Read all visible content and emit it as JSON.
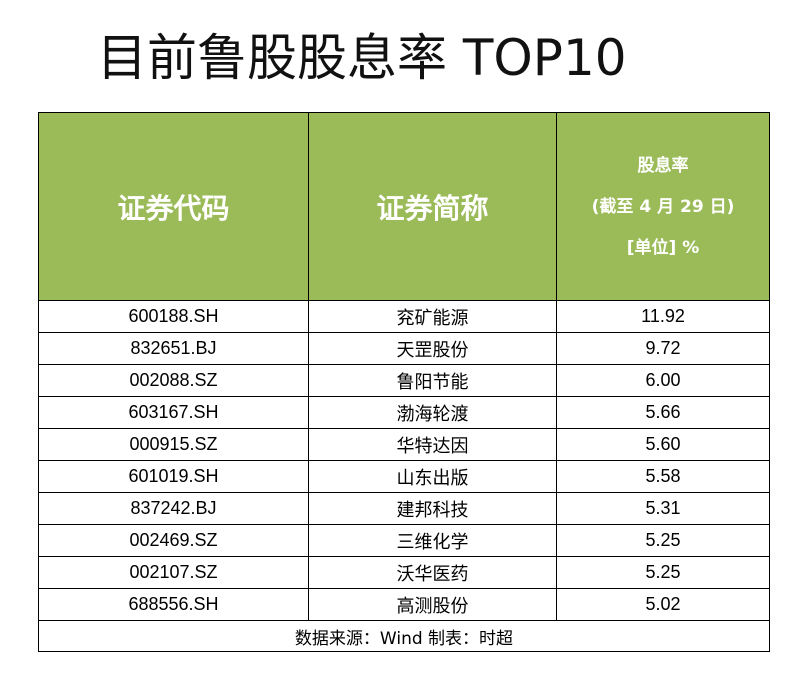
{
  "title": "目前鲁股股息率 TOP10",
  "table": {
    "headers": {
      "code": "证券代码",
      "name": "证券简称",
      "yield_line1": "股息率",
      "yield_line2": "(截至 4 月 29 日)",
      "yield_line3": "[单位] %"
    },
    "rows": [
      {
        "code": "600188.SH",
        "name": "兖矿能源",
        "yield": "11.92"
      },
      {
        "code": "832651.BJ",
        "name": "天罡股份",
        "yield": "9.72"
      },
      {
        "code": "002088.SZ",
        "name": "鲁阳节能",
        "yield": "6.00"
      },
      {
        "code": "603167.SH",
        "name": "渤海轮渡",
        "yield": "5.66"
      },
      {
        "code": "000915.SZ",
        "name": "华特达因",
        "yield": "5.60"
      },
      {
        "code": "601019.SH",
        "name": "山东出版",
        "yield": "5.58"
      },
      {
        "code": "837242.BJ",
        "name": "建邦科技",
        "yield": "5.31"
      },
      {
        "code": "002469.SZ",
        "name": "三维化学",
        "yield": "5.25"
      },
      {
        "code": "002107.SZ",
        "name": "沃华医药",
        "yield": "5.25"
      },
      {
        "code": "688556.SH",
        "name": "高测股份",
        "yield": "5.02"
      }
    ],
    "footer": "数据来源：Wind  制表：时超"
  },
  "colors": {
    "header_bg": "#9bbb59",
    "header_text": "#ffffff",
    "border": "#000000"
  }
}
